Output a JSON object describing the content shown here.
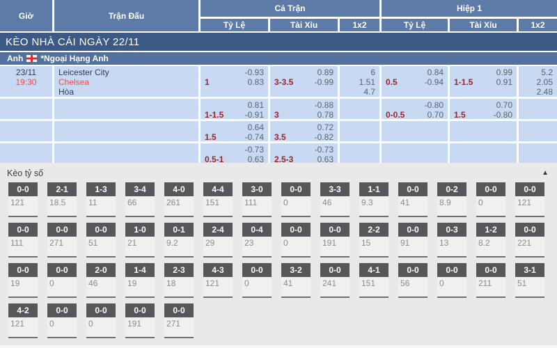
{
  "header": {
    "time": "Giờ",
    "match": "Trận Đấu",
    "full_match": "Cả Trận",
    "first_half": "Hiệp 1",
    "handicap": "Tỷ Lệ",
    "over_under": "Tài Xỉu",
    "one_x_two": "1x2"
  },
  "day_title": "KÈO NHÀ CÁI NGÀY 22/11",
  "league": {
    "country": "Anh",
    "flag": "england-flag",
    "name": "*Ngoại Hạng Anh"
  },
  "match": {
    "date": "23/11",
    "time": "19:30",
    "teams": [
      "Leicester City",
      "Chelsea",
      "Hòa"
    ]
  },
  "odds_rows": [
    {
      "ft_handicap": {
        "line": "1",
        "top": "-0.93",
        "bottom": "0.83"
      },
      "ft_over_under": {
        "line": "3-3.5",
        "top": "0.89",
        "bottom": "-0.99"
      },
      "ft_1x2": [
        "6",
        "1.51",
        "4.7"
      ],
      "h1_handicap": {
        "line": "0.5",
        "top": "0.84",
        "bottom": "-0.94"
      },
      "h1_over_under": {
        "line": "1-1.5",
        "top": "0.99",
        "bottom": "0.91"
      },
      "h1_1x2": [
        "5.2",
        "2.05",
        "2.48"
      ]
    },
    {
      "ft_handicap": {
        "line": "1-1.5",
        "top": "0.81",
        "bottom": "-0.91"
      },
      "ft_over_under": {
        "line": "3",
        "top": "-0.88",
        "bottom": "0.78"
      },
      "ft_1x2": [],
      "h1_handicap": {
        "line": "0-0.5",
        "top": "-0.80",
        "bottom": "0.70"
      },
      "h1_over_under": {
        "line": "1.5",
        "top": "0.70",
        "bottom": "-0.80"
      },
      "h1_1x2": []
    },
    {
      "ft_handicap": {
        "line": "1.5",
        "top": "0.64",
        "bottom": "-0.74"
      },
      "ft_over_under": {
        "line": "3.5",
        "top": "0.72",
        "bottom": "-0.82"
      },
      "ft_1x2": [],
      "h1_handicap": null,
      "h1_over_under": null,
      "h1_1x2": []
    },
    {
      "ft_handicap": {
        "line": "0.5-1",
        "top": "-0.73",
        "bottom": "0.63"
      },
      "ft_over_under": {
        "line": "2.5-3",
        "top": "-0.73",
        "bottom": "0.63"
      },
      "ft_1x2": [],
      "h1_handicap": null,
      "h1_over_under": null,
      "h1_1x2": []
    }
  ],
  "score_section": {
    "title": "Kèo tỷ số",
    "collapse_icon": "▲",
    "rows": [
      [
        {
          "s": "0-0",
          "v": "121"
        },
        {
          "s": "2-1",
          "v": "18.5"
        },
        {
          "s": "1-3",
          "v": "11"
        },
        {
          "s": "3-4",
          "v": "66"
        },
        {
          "s": "4-0",
          "v": "261"
        },
        {
          "s": "4-4",
          "v": "151"
        },
        {
          "s": "3-0",
          "v": "111"
        },
        {
          "s": "0-0",
          "v": "0"
        },
        {
          "s": "3-3",
          "v": "46"
        },
        {
          "s": "1-1",
          "v": "9.3"
        },
        {
          "s": "0-0",
          "v": "41"
        },
        {
          "s": "0-2",
          "v": "8.9"
        },
        {
          "s": "0-0",
          "v": "0"
        },
        {
          "s": "0-0",
          "v": "121"
        }
      ],
      [
        {
          "s": "0-0",
          "v": "111"
        },
        {
          "s": "0-0",
          "v": "271"
        },
        {
          "s": "0-0",
          "v": "51"
        },
        {
          "s": "1-0",
          "v": "21"
        },
        {
          "s": "0-1",
          "v": "9.2"
        },
        {
          "s": "2-4",
          "v": "29"
        },
        {
          "s": "0-4",
          "v": "23"
        },
        {
          "s": "0-0",
          "v": "0"
        },
        {
          "s": "0-0",
          "v": "191"
        },
        {
          "s": "2-2",
          "v": "15"
        },
        {
          "s": "0-0",
          "v": "91"
        },
        {
          "s": "0-3",
          "v": "13"
        },
        {
          "s": "1-2",
          "v": "8.2"
        },
        {
          "s": "0-0",
          "v": "221"
        }
      ],
      [
        {
          "s": "0-0",
          "v": "19"
        },
        {
          "s": "0-0",
          "v": "0"
        },
        {
          "s": "2-0",
          "v": "46"
        },
        {
          "s": "1-4",
          "v": "19"
        },
        {
          "s": "2-3",
          "v": "18"
        },
        {
          "s": "4-3",
          "v": "121"
        },
        {
          "s": "0-0",
          "v": "0"
        },
        {
          "s": "3-2",
          "v": "41"
        },
        {
          "s": "0-0",
          "v": "241"
        },
        {
          "s": "4-1",
          "v": "151"
        },
        {
          "s": "0-0",
          "v": "56"
        },
        {
          "s": "0-0",
          "v": "0"
        },
        {
          "s": "0-0",
          "v": "211"
        },
        {
          "s": "3-1",
          "v": "51"
        }
      ],
      [
        {
          "s": "4-2",
          "v": "121"
        },
        {
          "s": "0-0",
          "v": "0"
        },
        {
          "s": "0-0",
          "v": "0"
        },
        {
          "s": "0-0",
          "v": "191"
        },
        {
          "s": "0-0",
          "v": "271"
        }
      ]
    ]
  },
  "colors": {
    "header_bg": "#5d7ba6",
    "day_title_bg": "#3c5a85",
    "league_bg": "#54719d",
    "row_bg": "#c8daf3",
    "accent_red": "#f04a45",
    "handicap_red": "#a02226",
    "score_header_bg": "#56575b",
    "section_bg": "#e9e9e9"
  }
}
